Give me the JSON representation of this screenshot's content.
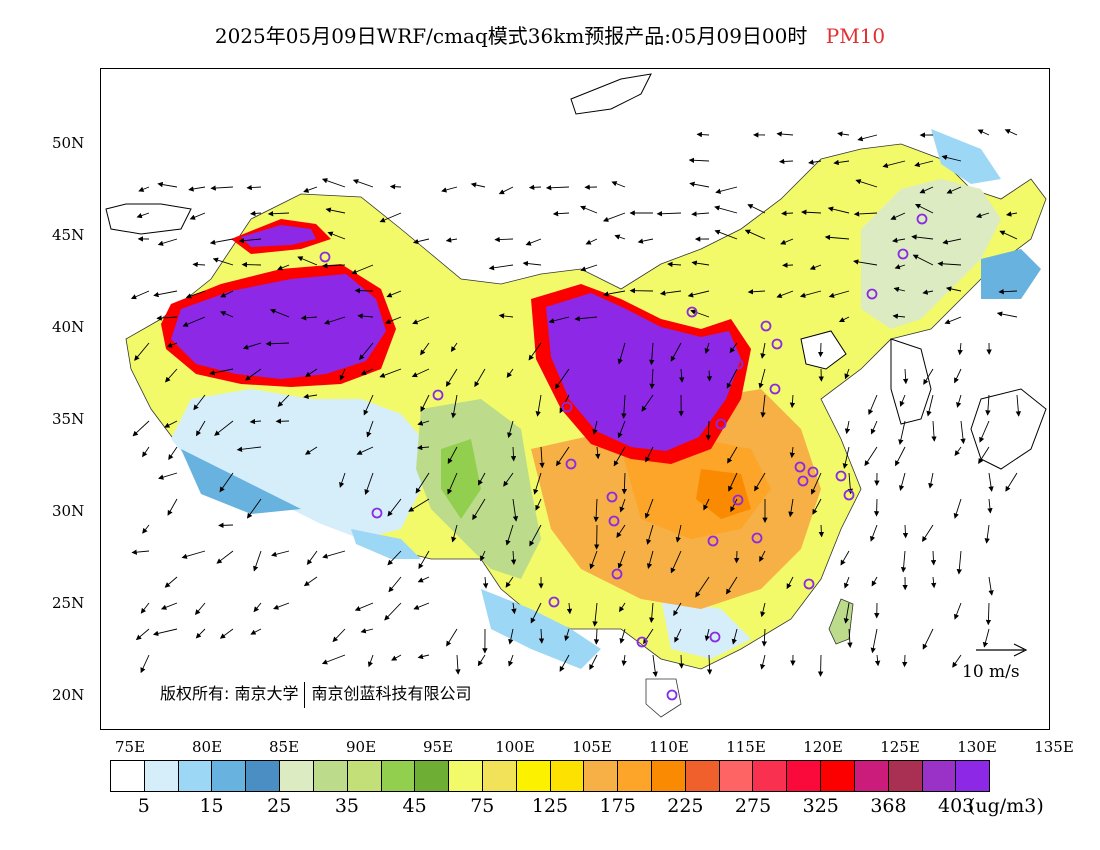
{
  "title": {
    "main": "2025年05月09日WRF/cmaq模式36km预报产品:05月09日00时",
    "species": "PM10"
  },
  "map": {
    "lat_labels": [
      "50N",
      "45N",
      "40N",
      "35N",
      "30N",
      "25N",
      "20N"
    ],
    "lon_labels": [
      "75E",
      "80E",
      "85E",
      "90E",
      "95E",
      "100E",
      "105E",
      "110E",
      "115E",
      "120E",
      "125E",
      "130E",
      "135E"
    ],
    "copyright_left": "版权所有: 南京大学",
    "copyright_right": "南京创蓝科技有限公司",
    "reference_vector": "10 m/s"
  },
  "legend": {
    "colors": [
      "#ffffff",
      "#d5eefa",
      "#9cd7f5",
      "#68b2e0",
      "#4a8ec4",
      "#dcebc1",
      "#bcdc8c",
      "#c3df78",
      "#92cf4e",
      "#6fae35",
      "#f2fa6a",
      "#f2e25a",
      "#fcf200",
      "#fde100",
      "#f6b045",
      "#fca528",
      "#fb8a03",
      "#f0602d",
      "#fe6464",
      "#f9304f",
      "#fa0a3b",
      "#fc0000",
      "#cb1b7b",
      "#a93053",
      "#9b32c8",
      "#8c28e6"
    ],
    "labels": [
      "5",
      "15",
      "25",
      "35",
      "45",
      "75",
      "125",
      "175",
      "225",
      "275",
      "325",
      "368",
      "403"
    ],
    "unit": "(ug/m3)"
  },
  "colors": {
    "title_text": "#000000",
    "species_text": "#e03030",
    "station_marker": "#8a2be2",
    "coastline": "#000000"
  }
}
